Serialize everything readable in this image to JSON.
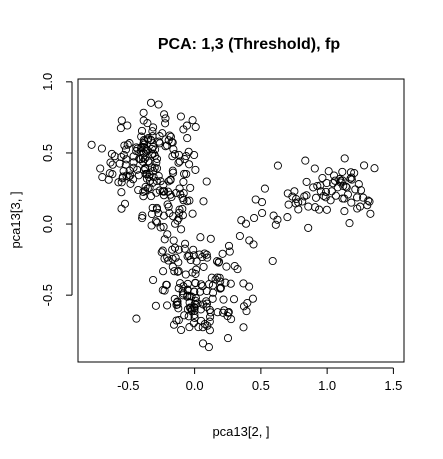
{
  "chart_data": {
    "type": "scatter",
    "title": "PCA: 1,3 (Threshold), fp",
    "xlabel": "pca13[2, ]",
    "ylabel": "pca13[3, ]",
    "xlim": [
      -0.88,
      1.58
    ],
    "ylim": [
      -0.97,
      1.02
    ],
    "xticks": [
      -0.5,
      0.0,
      0.5,
      1.0,
      1.5
    ],
    "xtick_labels": [
      "-0.5",
      "0.0",
      "0.5",
      "1.0",
      "1.5"
    ],
    "yticks": [
      -0.5,
      0.0,
      0.5,
      1.0
    ],
    "ytick_labels": [
      "-0.5",
      "0.0",
      "0.5",
      "1.0"
    ],
    "marker": "open-circle",
    "grid": false,
    "legend": "none",
    "clusters": [
      {
        "center": [
          -0.35,
          0.45
        ],
        "spread": [
          0.17,
          0.18
        ],
        "count": 170,
        "limits": [
          [
            -0.82,
            0.2
          ],
          [
            -0.05,
            0.95
          ]
        ]
      },
      {
        "center": [
          -0.15,
          0.05
        ],
        "spread": [
          0.12,
          0.14
        ],
        "count": 35,
        "limits": [
          [
            -0.45,
            0.15
          ],
          [
            -0.25,
            0.45
          ]
        ]
      },
      {
        "center": [
          0.05,
          -0.45
        ],
        "spread": [
          0.17,
          0.17
        ],
        "count": 150,
        "limits": [
          [
            -0.65,
            0.5
          ],
          [
            -0.92,
            -0.05
          ]
        ]
      },
      {
        "center": [
          1.05,
          0.22
        ],
        "spread": [
          0.18,
          0.11
        ],
        "count": 65,
        "limits": [
          [
            0.7,
            1.4
          ],
          [
            -0.05,
            0.5
          ]
        ]
      },
      {
        "center": [
          0.6,
          0.05
        ],
        "spread": [
          0.15,
          0.15
        ],
        "count": 20,
        "limits": [
          [
            0.35,
            0.95
          ],
          [
            -0.3,
            0.55
          ]
        ]
      }
    ],
    "seed": 1234
  }
}
